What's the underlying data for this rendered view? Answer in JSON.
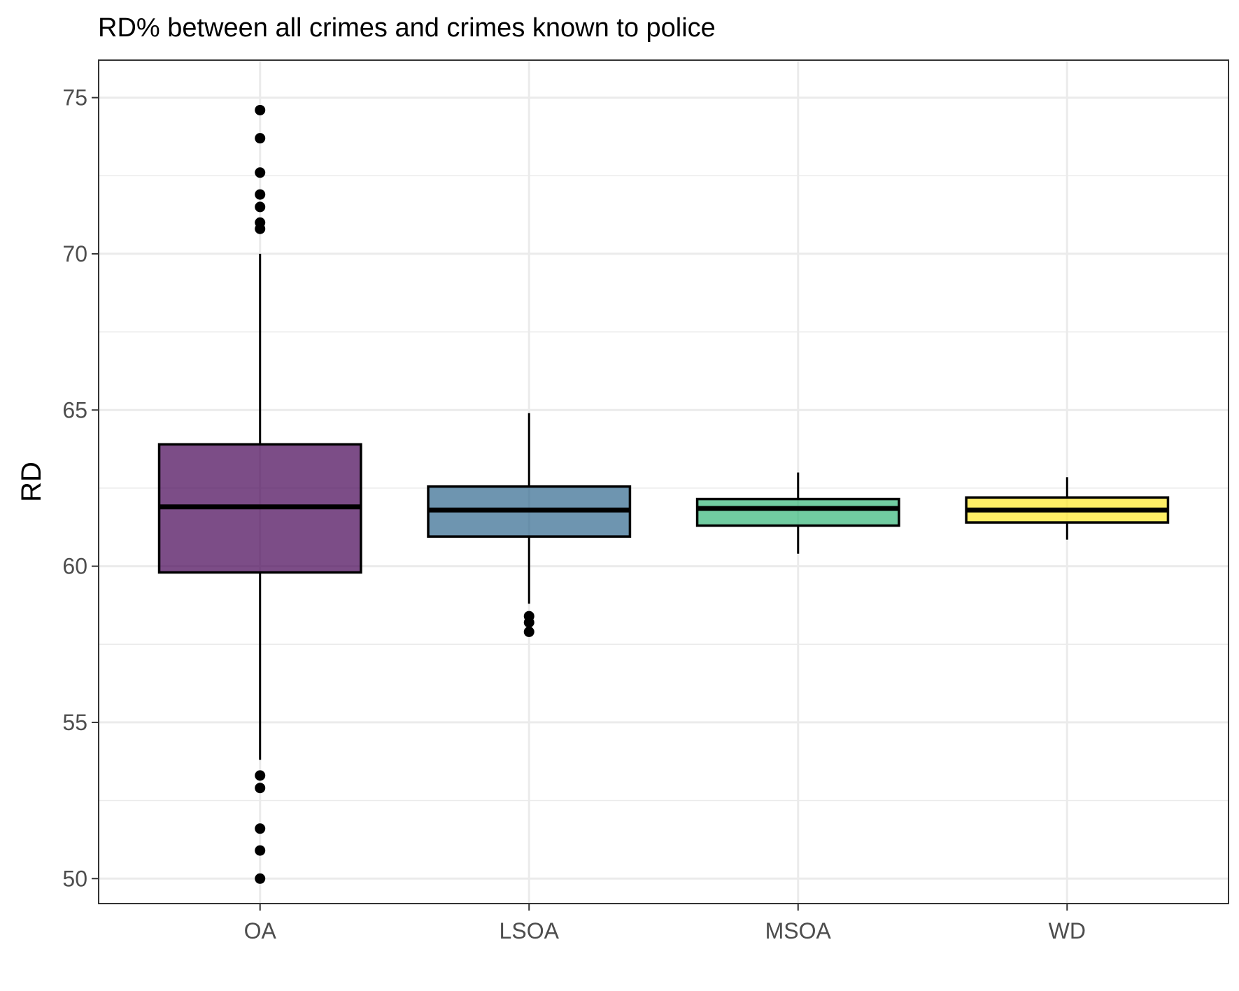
{
  "chart_data": {
    "type": "boxplot",
    "title": "RD% between all crimes and crimes known to police",
    "xlabel": "",
    "ylabel": "RD",
    "ylim": [
      49.2,
      76.2
    ],
    "yticks": [
      50,
      55,
      60,
      65,
      70,
      75
    ],
    "grid": true,
    "legend": "none",
    "categories": [
      "OA",
      "LSOA",
      "MSOA",
      "WD"
    ],
    "boxes": [
      {
        "category": "OA",
        "whisker_low": 53.8,
        "q1": 59.8,
        "median": 61.9,
        "q3": 63.9,
        "whisker_high": 70.0,
        "outliers": [
          74.6,
          73.7,
          72.6,
          71.9,
          71.5,
          71.0,
          70.8,
          53.3,
          52.9,
          51.6,
          50.9,
          50.0
        ],
        "color": "#440154"
      },
      {
        "category": "LSOA",
        "whisker_low": 58.8,
        "q1": 60.95,
        "median": 61.8,
        "q3": 62.55,
        "whisker_high": 64.9,
        "outliers": [
          58.4,
          58.2,
          57.9
        ],
        "color": "#31688e"
      },
      {
        "category": "MSOA",
        "whisker_low": 60.4,
        "q1": 61.3,
        "median": 61.85,
        "q3": 62.15,
        "whisker_high": 63.0,
        "outliers": [],
        "color": "#35b779"
      },
      {
        "category": "WD",
        "whisker_low": 60.85,
        "q1": 61.4,
        "median": 61.8,
        "q3": 62.2,
        "whisker_high": 62.85,
        "outliers": [],
        "color": "#fde725"
      }
    ]
  }
}
